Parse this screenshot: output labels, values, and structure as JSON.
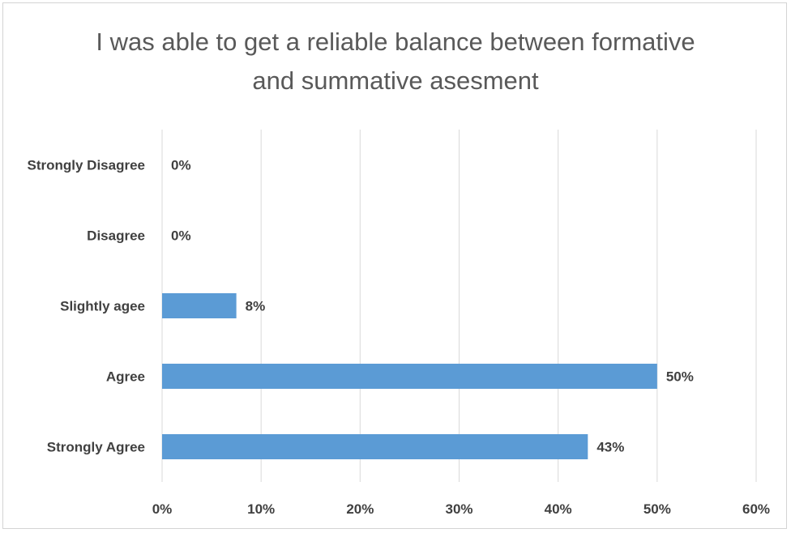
{
  "chart_data": {
    "type": "bar",
    "orientation": "horizontal",
    "title_lines": [
      "I was able to get a reliable balance between formative",
      "and summative asesment"
    ],
    "categories": [
      "Strongly Disagree",
      "Disagree",
      "Slightly agee",
      "Agree",
      "Strongly Agree"
    ],
    "values": [
      0,
      0,
      7.5,
      50,
      43
    ],
    "data_labels": [
      "0%",
      "0%",
      "8%",
      "50%",
      "43%"
    ],
    "xlim": [
      0,
      60
    ],
    "xticks": [
      "0%",
      "10%",
      "20%",
      "30%",
      "40%",
      "50%",
      "60%"
    ],
    "grid": true,
    "legend": "none",
    "bar_color": "#5b9bd5",
    "grid_color": "#d9d9d9"
  }
}
